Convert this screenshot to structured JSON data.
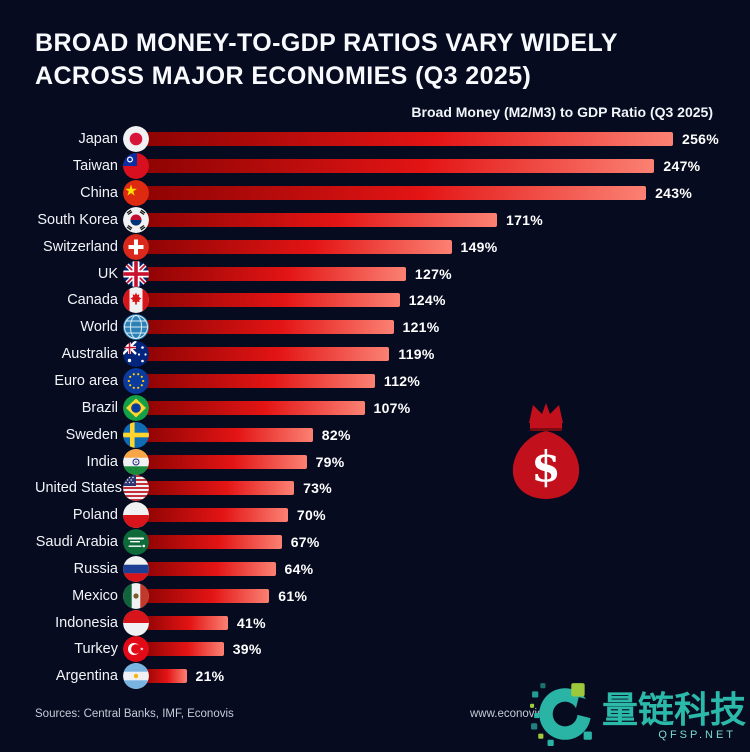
{
  "header": {
    "title_line1": "BROAD MONEY-TO-GDP RATIOS VARY WIDELY",
    "title_line2": "ACROSS MAJOR ECONOMIES (Q3 2025)",
    "subtitle": "Broad Money (M2/M3) to GDP Ratio (Q3 2025)"
  },
  "chart_data": {
    "type": "bar",
    "orientation": "horizontal",
    "title": "Broad Money-to-GDP Ratios Vary Widely Across Major Economies (Q3 2025)",
    "subtitle": "Broad Money (M2/M3) to GDP Ratio (Q3 2025)",
    "unit": "%",
    "xlim": [
      0,
      256
    ],
    "grid": false,
    "legend": "none",
    "bar_gradient": [
      "#8e0303",
      "#e31414",
      "#fb8173"
    ],
    "categories": [
      "Japan",
      "Taiwan",
      "China",
      "South Korea",
      "Switzerland",
      "UK",
      "Canada",
      "World",
      "Australia",
      "Euro area",
      "Brazil",
      "Sweden",
      "India",
      "United States",
      "Poland",
      "Saudi Arabia",
      "Russia",
      "Mexico",
      "Indonesia",
      "Turkey",
      "Argentina"
    ],
    "values": [
      256,
      247,
      243,
      171,
      149,
      127,
      124,
      121,
      119,
      112,
      107,
      82,
      79,
      73,
      70,
      67,
      64,
      61,
      41,
      39,
      21
    ],
    "labels": [
      "256%",
      "247%",
      "243%",
      "171%",
      "149%",
      "127%",
      "124%",
      "121%",
      "119%",
      "112%",
      "107%",
      "82%",
      "79%",
      "73%",
      "70%",
      "67%",
      "64%",
      "61%",
      "41%",
      "39%",
      "21%"
    ],
    "flags": [
      "japan",
      "taiwan",
      "china",
      "south-korea",
      "switzerland",
      "uk",
      "canada",
      "world",
      "australia",
      "euro-area",
      "brazil",
      "sweden",
      "india",
      "united-states",
      "poland",
      "saudi-arabia",
      "russia",
      "mexico",
      "indonesia",
      "turkey",
      "argentina"
    ]
  },
  "decor": {
    "money_bag_icon": "money-bag-icon",
    "dollar_sign": "$",
    "bag_color": "#c2101c"
  },
  "footer": {
    "sources": "Sources: Central Banks, IMF, Econovis",
    "website": "www.econovis.net"
  },
  "watermark": {
    "logo_icon": "qfsp-logo-icon",
    "brand": "量链科技",
    "domain": "QFSP.NET",
    "teal": "#2bb9aa",
    "green": "#9dc83b"
  },
  "colors": {
    "background": "#060b1f",
    "bar_value_text": "#ffffff"
  }
}
